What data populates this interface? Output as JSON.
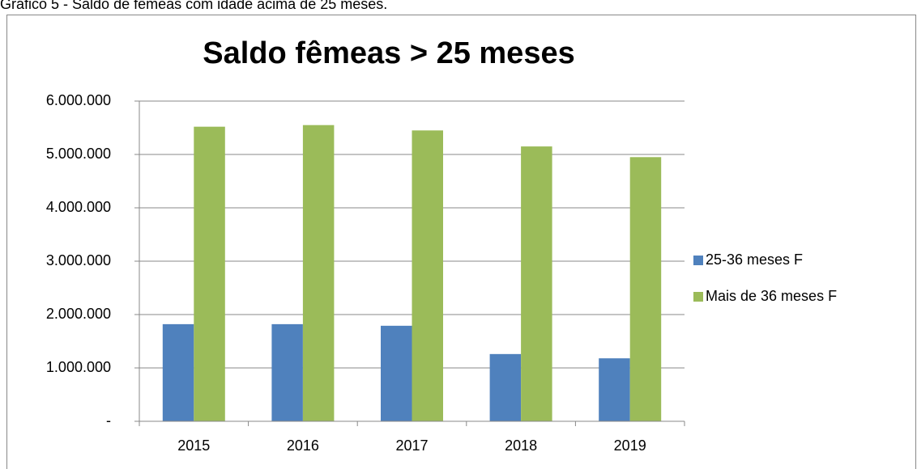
{
  "caption": "Gráfico 5 - Saldo de fêmeas com idade acima de 25 meses.",
  "chart_data": {
    "type": "bar",
    "title": "Saldo fêmeas > 25 meses",
    "categories": [
      "2015",
      "2016",
      "2017",
      "2018",
      "2019"
    ],
    "series": [
      {
        "name": "25-36 meses F",
        "color": "#4f81bd",
        "values": [
          1820000,
          1820000,
          1790000,
          1260000,
          1180000
        ]
      },
      {
        "name": "Mais de 36 meses F",
        "color": "#9bbb59",
        "values": [
          5520000,
          5550000,
          5450000,
          5150000,
          4950000
        ]
      }
    ],
    "ylim": [
      0,
      6000000
    ],
    "yticks": [
      {
        "value": 0,
        "label": "-"
      },
      {
        "value": 1000000,
        "label": "1.000.000"
      },
      {
        "value": 2000000,
        "label": "2.000.000"
      },
      {
        "value": 3000000,
        "label": "3.000.000"
      },
      {
        "value": 4000000,
        "label": "4.000.000"
      },
      {
        "value": 5000000,
        "label": "5.000.000"
      },
      {
        "value": 6000000,
        "label": "6.000.000"
      }
    ],
    "grid": true,
    "legend": "right"
  }
}
